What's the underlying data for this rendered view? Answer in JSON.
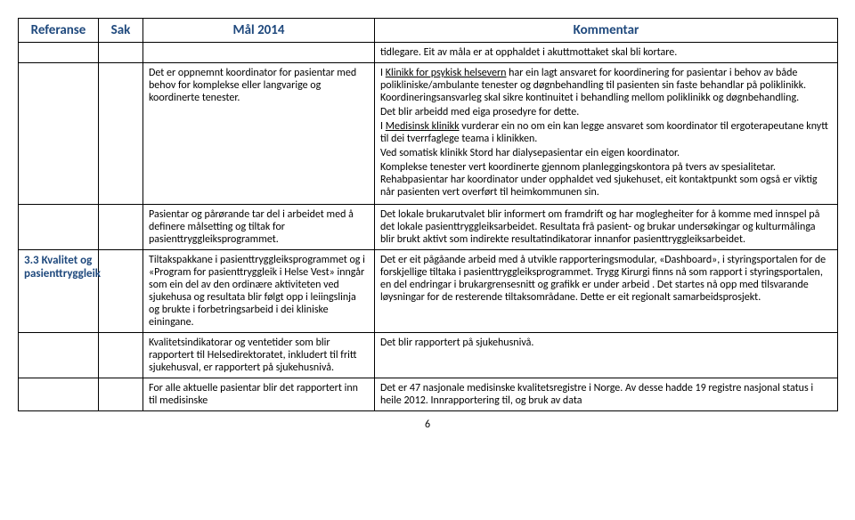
{
  "headers": {
    "referanse": "Referanse",
    "sak": "Sak",
    "mal": "Mål 2014",
    "kommentar": "Kommentar"
  },
  "rows": {
    "empty1": {
      "ref": "",
      "sak": "",
      "mal": "",
      "kom": "tidlegare. Eit av måla er at opphaldet i akuttmottaket skal bli kortare."
    },
    "r2": {
      "ref": "",
      "sak": "",
      "mal": "Det er oppnemnt koordinator for pasientar med behov for komplekse eller langvarige og koordinerte tenester.",
      "kom_parts": {
        "a": "I ",
        "b": "Klinikk for psykisk helsevern",
        "c": " har ein lagt ansvaret for koordinering for pasientar i behov av både polikliniske/ambulante tenester og døgnbehandling til pasienten sin faste behandlar på poliklinikk. Koordineringsansvarleg skal sikre kontinuitet i behandling mellom poliklinikk og døgnbehandling.",
        "d": "Det blir arbeidd med eiga prosedyre for dette.",
        "e": "I ",
        "f": "Medisinsk klinikk",
        "g": " vurderar ein no om ein kan legge ansvaret som koordinator til ergoterapeutane knytt til dei tverrfaglege teama i klinikken.",
        "h": "Ved somatisk klinikk Stord har dialysepasientar ein eigen koordinator.",
        "i": "Komplekse tenester vert koordinerte gjennom planleggingskontora på tvers av spesialitetar. Rehabpasientar har koordinator under opphaldet ved sjukehuset, eit kontaktpunkt som også er viktig når pasienten vert overført til heimkommunen sin."
      }
    },
    "r3": {
      "ref": "",
      "sak": "",
      "mal": "Pasientar og pårørande tar del i arbeidet med å definere målsetting og tiltak for pasienttryggleiksprogrammet.",
      "kom": "Det lokale brukarutvalet blir informert om framdrift og har moglegheiter for å komme med innspel på det lokale pasienttryggleiksarbeidet. Resultata frå pasient- og brukar undersøkingar og kulturmålinga blir brukt aktivt som indirekte resultatindikatorar innanfor pasienttryggleiksarbeidet."
    },
    "r4": {
      "ref": "3.3 Kvalitet og pasienttryggleik",
      "sak": "",
      "mal": "Tiltakspakkane i pasienttryggleiksprogrammet og i «Program for pasienttryggleik i Helse Vest» inngår som ein del av den ordinære aktiviteten ved sjukehusa og resultata blir følgt opp i leiingslinja og brukte i forbetringsarbeid i dei kliniske einingane.",
      "kom": "Det er eit pågåande arbeid med å utvikle rapporteringsmodular, «Dashboard», i styringsportalen for de forskjellige tiltaka i pasienttryggleiksprogrammet. Trygg Kirurgi finns nå som rapport i styringsportalen, en del endringar i brukargrensesnitt og grafikk er under arbeid . Det startes nå opp med tilsvarande løysningar for de resterende tiltaksområdane. Dette er eit regionalt samarbeidsprosjekt."
    },
    "r5": {
      "ref": "",
      "sak": "",
      "mal": "Kvalitetsindikatorar og ventetider som blir rapportert til Helsedirektoratet, inkludert til fritt sjukehusval, er rapportert på sjukehusnivå.",
      "kom": "Det blir rapportert på sjukehusnivå."
    },
    "r6": {
      "ref": "",
      "sak": "",
      "mal": "For alle aktuelle pasientar blir det rapportert inn til medisinske",
      "kom": "Det er 47 nasjonale medisinske  kvalitetsregistre i Norge. Av desse hadde 19 registre nasjonal status i heile 2012. Innrapportering til, og bruk av data"
    }
  },
  "page_number": "6",
  "styling": {
    "header_color": "#1f497d",
    "border_color": "#000000",
    "background_color": "#ffffff",
    "font_family": "Calibri",
    "header_fontsize": 15,
    "body_fontsize": 12
  }
}
